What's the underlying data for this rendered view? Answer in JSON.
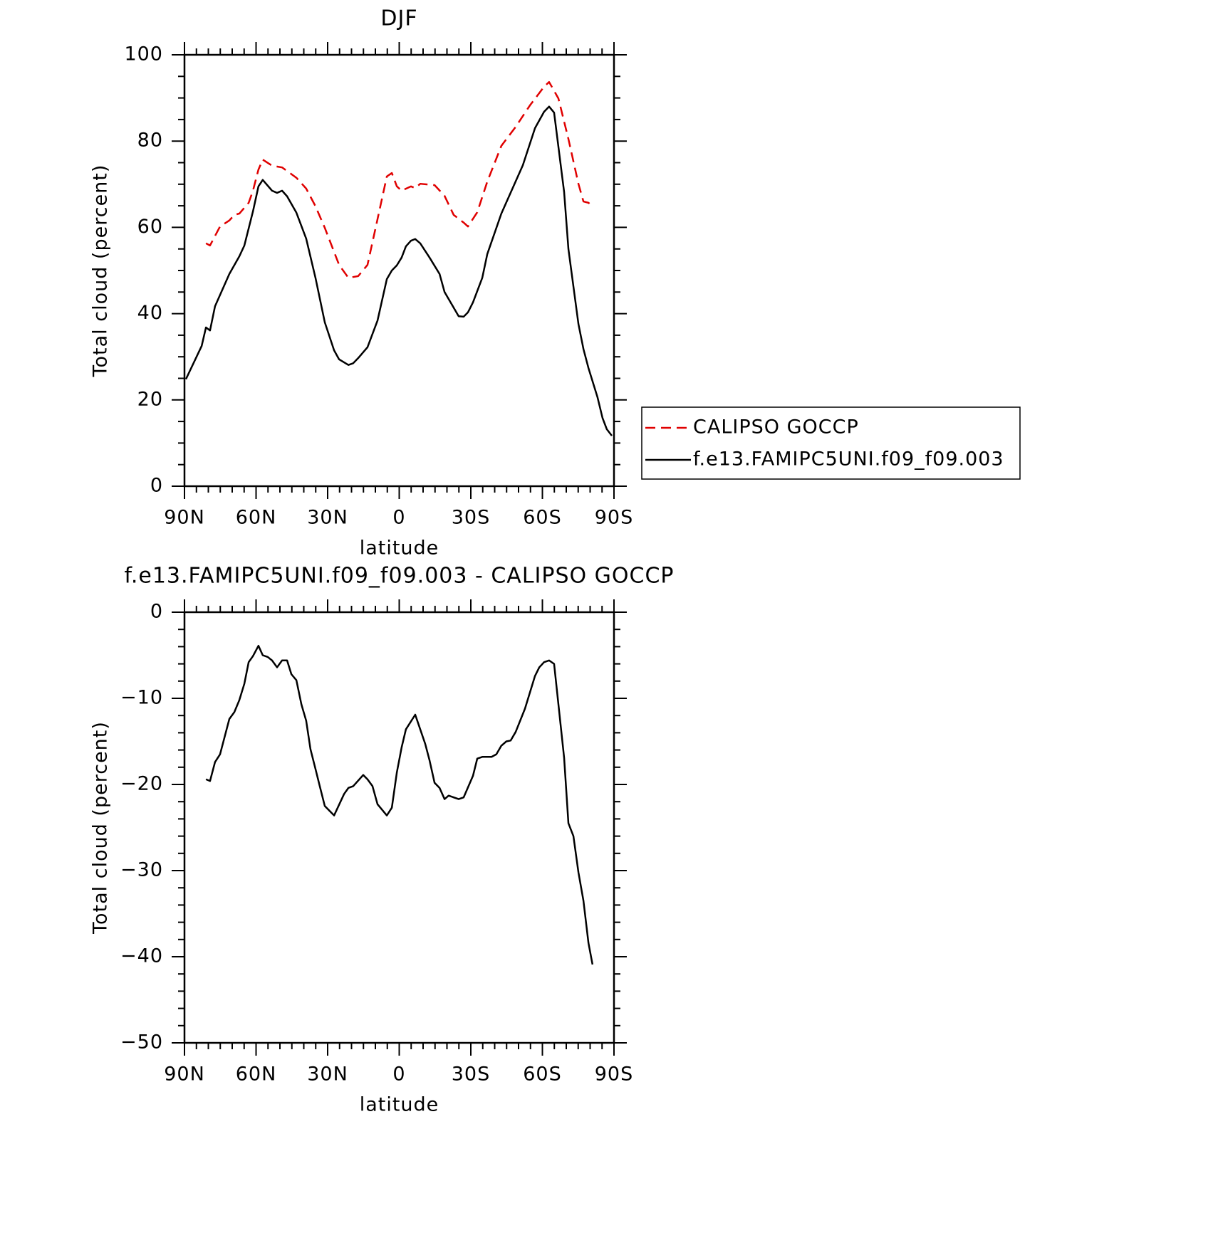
{
  "chart_data": [
    {
      "type": "line",
      "title": "DJF",
      "xlabel": "latitude",
      "ylabel": "Total cloud (percent)",
      "xlim": [
        90,
        -90
      ],
      "xticks": [
        {
          "value": 90,
          "label": "90N"
        },
        {
          "value": 60,
          "label": "60N"
        },
        {
          "value": 30,
          "label": "30N"
        },
        0,
        {
          "value": -30,
          "label": "30S"
        },
        {
          "value": -60,
          "label": "60S"
        },
        {
          "value": -90,
          "label": "90S"
        }
      ],
      "xminor": [
        85,
        80,
        75,
        70,
        65,
        55,
        50,
        45,
        40,
        35,
        25,
        20,
        15,
        10,
        5,
        -5,
        -10,
        -15,
        -20,
        -25,
        -35,
        -40,
        -45,
        -50,
        -55,
        -65,
        -70,
        -75,
        -80,
        -85
      ],
      "ylim": [
        0,
        100
      ],
      "yticks": [
        0,
        20,
        40,
        60,
        80,
        100
      ],
      "yminor": [
        5,
        10,
        15,
        25,
        30,
        35,
        45,
        50,
        55,
        65,
        70,
        75,
        85,
        90,
        95
      ],
      "legend": "outside-right",
      "series": [
        {
          "name": "CALIPSO GOCCP",
          "color": "#e00000",
          "style": "dashed",
          "x": [
            81,
            79.3,
            75.1,
            71.2,
            69.1,
            67,
            63.1,
            61.3,
            59,
            57.2,
            53.3,
            49.1,
            43.1,
            39,
            35.1,
            31.2,
            25.2,
            21.3,
            17.2,
            13.3,
            9.1,
            5.2,
            3.1,
            1,
            -1,
            -4.9,
            -6.7,
            -8.8,
            -14.8,
            -19,
            -22.8,
            -27,
            -28.8,
            -32.7,
            -36.9,
            -42.8,
            -48.8,
            -54.8,
            -60.7,
            -62.8,
            -66.7,
            -70.9,
            -75.1,
            -77.2,
            -79.3,
            -81
          ],
          "values": [
            56.3,
            55.8,
            60.2,
            61.6,
            62.9,
            63.2,
            65.7,
            68.5,
            73.4,
            75.7,
            74.3,
            73.9,
            71.5,
            69,
            64.9,
            59.9,
            51.3,
            48.3,
            48.7,
            51.3,
            61.9,
            71.8,
            72.6,
            69.5,
            68.5,
            69.5,
            69.1,
            70.1,
            69.8,
            67.3,
            62.9,
            61.1,
            60.2,
            63.5,
            70.6,
            78.9,
            83.3,
            88.3,
            92.6,
            93.7,
            89.9,
            80.5,
            70.1,
            66,
            65.7,
            64.9
          ]
        },
        {
          "name": "f.e13.FAMIPC5UNI.f09_f09.003",
          "color": "#000000",
          "style": "solid",
          "x": [
            89.4,
            82.8,
            81,
            79.3,
            77.2,
            71.2,
            67,
            64.9,
            61.3,
            59,
            57.2,
            53.3,
            51.2,
            49.1,
            47,
            43.1,
            39,
            35.1,
            31.2,
            27.3,
            25.2,
            21.3,
            19.3,
            17.2,
            13.3,
            9.1,
            5.2,
            3.1,
            1,
            -1,
            -2.8,
            -4.9,
            -6.7,
            -8.8,
            -12.7,
            -16.9,
            -19,
            -22.8,
            -24.9,
            -27,
            -28.8,
            -30.9,
            -34.8,
            -36.9,
            -42.8,
            -51.8,
            -56.9,
            -60.7,
            -62.8,
            -64.9,
            -69.1,
            -70.9,
            -75.1,
            -77.2,
            -79.3,
            -83.1,
            -85.2,
            -87,
            -89.1
          ],
          "values": [
            24.8,
            32.5,
            36.8,
            36.1,
            41.7,
            49.2,
            53.3,
            55.8,
            63.7,
            69.5,
            71,
            68.5,
            68,
            68.5,
            67.2,
            63.4,
            57.4,
            48.3,
            38,
            31.5,
            29.4,
            28.1,
            28.5,
            29.7,
            32.2,
            38.4,
            48,
            50,
            51.2,
            53,
            55.6,
            56.9,
            57.3,
            56.3,
            53,
            49.2,
            45,
            41.4,
            39.4,
            39.3,
            40.3,
            42.6,
            48.3,
            53.8,
            63.2,
            74.4,
            83,
            86.8,
            88,
            86.6,
            68.2,
            55,
            37.6,
            31.8,
            27.4,
            20.6,
            15.8,
            13.2,
            11.7
          ]
        }
      ]
    },
    {
      "type": "line",
      "title": "f.e13.FAMIPC5UNI.f09_f09.003 - CALIPSO GOCCP",
      "xlabel": "latitude",
      "ylabel": "Total cloud (percent)",
      "xlim": [
        90,
        -90
      ],
      "xticks": [
        {
          "value": 90,
          "label": "90N"
        },
        {
          "value": 60,
          "label": "60N"
        },
        {
          "value": 30,
          "label": "30N"
        },
        0,
        {
          "value": -30,
          "label": "30S"
        },
        {
          "value": -60,
          "label": "60S"
        },
        {
          "value": -90,
          "label": "90S"
        }
      ],
      "xminor": [
        85,
        80,
        75,
        70,
        65,
        55,
        50,
        45,
        40,
        35,
        25,
        20,
        15,
        10,
        5,
        -5,
        -10,
        -15,
        -20,
        -25,
        -35,
        -40,
        -45,
        -50,
        -55,
        -65,
        -70,
        -75,
        -80,
        -85
      ],
      "ylim": [
        -50,
        0
      ],
      "yticks": [
        {
          "value": -50,
          "label": "−50"
        },
        {
          "value": -40,
          "label": "−40"
        },
        {
          "value": -30,
          "label": "−30"
        },
        {
          "value": -20,
          "label": "−20"
        },
        {
          "value": -10,
          "label": "−10"
        },
        0
      ],
      "yminor": [
        -48,
        -46,
        -44,
        -42,
        -38,
        -36,
        -34,
        -32,
        -28,
        -26,
        -24,
        -22,
        -18,
        -16,
        -14,
        -12,
        -8,
        -6,
        -4,
        -2
      ],
      "series": [
        {
          "color": "#000000",
          "style": "solid",
          "x": [
            81,
            79.3,
            77.2,
            75.1,
            71.2,
            69.1,
            67,
            64.9,
            63.1,
            61.3,
            59,
            57.2,
            55.1,
            53.3,
            51.2,
            49.1,
            47,
            45.2,
            43.1,
            41,
            39,
            37.2,
            35.1,
            33.3,
            31.2,
            27.3,
            23.1,
            21.3,
            19.3,
            15.1,
            13.3,
            11.2,
            9.1,
            5.2,
            3.1,
            1,
            -1,
            -2.8,
            -6.7,
            -8.8,
            -10.9,
            -12.7,
            -14.8,
            -16.9,
            -19,
            -20.7,
            -24.9,
            -27,
            -30.9,
            -32.7,
            -34.8,
            -38.7,
            -40.7,
            -42.8,
            -44.9,
            -46.7,
            -48.8,
            -52.7,
            -56.9,
            -58.7,
            -60.7,
            -62.8,
            -64.9,
            -69.1,
            -70.9,
            -73,
            -75.1,
            -77.2,
            -79.3,
            -81
          ],
          "values": [
            -19.4,
            -19.6,
            -17.4,
            -16.5,
            -12.4,
            -11.6,
            -10.2,
            -8.3,
            -5.8,
            -5.1,
            -3.9,
            -5,
            -5.2,
            -5.6,
            -6.4,
            -5.6,
            -5.6,
            -7.2,
            -7.9,
            -10.7,
            -12.6,
            -15.9,
            -18.2,
            -20.2,
            -22.5,
            -23.6,
            -21.1,
            -20.4,
            -20.2,
            -18.9,
            -19.4,
            -20.2,
            -22.3,
            -23.6,
            -22.7,
            -18.6,
            -15.7,
            -13.6,
            -11.9,
            -13.6,
            -15.3,
            -17.2,
            -19.8,
            -20.4,
            -21.7,
            -21.3,
            -21.7,
            -21.5,
            -19,
            -17,
            -16.8,
            -16.8,
            -16.5,
            -15.5,
            -15,
            -14.9,
            -13.9,
            -11.2,
            -7.4,
            -6.4,
            -5.8,
            -5.6,
            -6,
            -16.9,
            -24.5,
            -26,
            -30.2,
            -33.5,
            -38.4,
            -40.9
          ]
        }
      ]
    }
  ]
}
